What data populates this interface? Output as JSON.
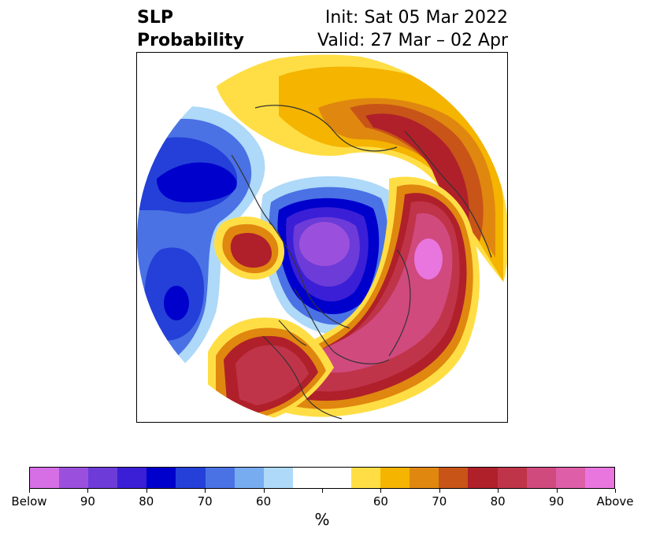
{
  "title": {
    "left_line1": "SLP",
    "left_line2": "Probability",
    "right_line1": "Init: Sat 05 Mar 2022",
    "right_line2": "Valid: 27 Mar – 02 Apr"
  },
  "colorbar": {
    "colors": [
      "#d66ee6",
      "#9b50dd",
      "#6c3bd8",
      "#3b1fd6",
      "#0000cc",
      "#2440d8",
      "#4a72e4",
      "#78acf0",
      "#aed9f8",
      "#ffffff",
      "#ffffff",
      "#ffde45",
      "#f4b400",
      "#e0870f",
      "#c85418",
      "#b0202a",
      "#c0344a",
      "#d04a7e",
      "#de5ea8",
      "#e876de"
    ],
    "tick_labels": [
      "Below",
      "90",
      "80",
      "70",
      "60",
      "",
      "60",
      "70",
      "80",
      "90",
      "Above"
    ],
    "unit": "%"
  },
  "map": {
    "projection": "north-polar-stereographic",
    "field": "sea-level-pressure probability"
  }
}
